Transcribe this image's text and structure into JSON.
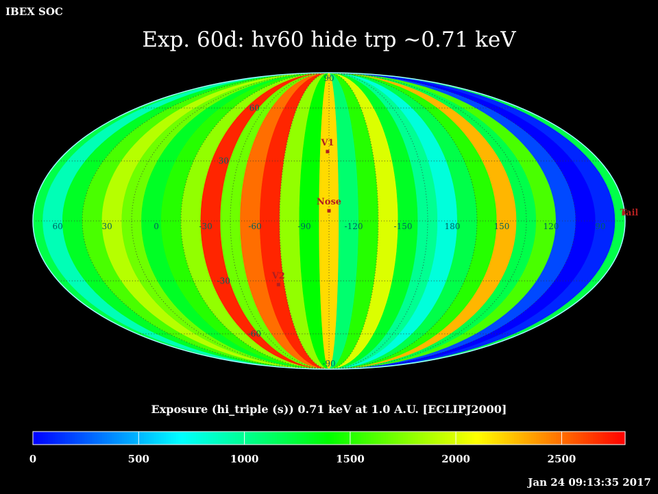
{
  "header": {
    "corner_label": "IBEX SOC",
    "title": "Exp.   60d: hv60 hide trp ~0.71 keV",
    "timestamp": "Jan 24 09:13:35 2017"
  },
  "chart_data": {
    "type": "heatmap",
    "projection": "mollweide",
    "title": "Exp.   60d: hv60 hide trp ~0.71 keV",
    "colorbar": {
      "label": "Exposure (hi_triple (s))  0.71 keV at 1.0 A.U. [ECLIPJ2000]",
      "ticks": [
        0,
        500,
        1000,
        1500,
        2000,
        2500
      ],
      "tick_labels": [
        "0",
        "500",
        "1000",
        "1500",
        "2000",
        "2500"
      ],
      "range": [
        0,
        2800
      ],
      "colormap": [
        "#0000ff",
        "#0080ff",
        "#00ffff",
        "#00ff80",
        "#00ff00",
        "#80ff00",
        "#ffff00",
        "#ff8000",
        "#ff0000"
      ]
    },
    "longitude_labels": [
      "60",
      "30",
      "0",
      "-30",
      "-60",
      "-90",
      "-120",
      "-150",
      "180",
      "150",
      "120",
      "90"
    ],
    "latitude_labels": [
      "90",
      "60",
      "30",
      "-30",
      "-60",
      "-90"
    ],
    "markers": [
      {
        "name": "V1",
        "lon": 256,
        "lat": 35
      },
      {
        "name": "Nose",
        "lon": 255,
        "lat": 5
      },
      {
        "name": "V2",
        "lon": 289,
        "lat": -32
      },
      {
        "name": "Tail",
        "lon": 75,
        "lat": -5
      }
    ],
    "exposure_strips": [
      {
        "center": -180,
        "value": 1200
      },
      {
        "center": -168,
        "value": 900
      },
      {
        "center": -156,
        "value": 1300
      },
      {
        "center": -144,
        "value": 1600
      },
      {
        "center": -132,
        "value": 1900
      },
      {
        "center": -120,
        "value": 1700
      },
      {
        "center": -108,
        "value": 1300
      },
      {
        "center": -96,
        "value": 1500
      },
      {
        "center": -84,
        "value": 1800
      },
      {
        "center": -72,
        "value": 2700
      },
      {
        "center": -60,
        "value": 1700
      },
      {
        "center": -48,
        "value": 2500
      },
      {
        "center": -36,
        "value": 2700
      },
      {
        "center": -24,
        "value": 1800
      },
      {
        "center": -12,
        "value": 1400
      },
      {
        "center": 0,
        "value": 2200
      },
      {
        "center": 12,
        "value": 1100
      },
      {
        "center": 24,
        "value": 1500
      },
      {
        "center": 36,
        "value": 2000
      },
      {
        "center": 48,
        "value": 1300
      },
      {
        "center": 60,
        "value": 1000
      },
      {
        "center": 72,
        "value": 800
      },
      {
        "center": 84,
        "value": 1200
      },
      {
        "center": 96,
        "value": 1500
      },
      {
        "center": 108,
        "value": 2300
      },
      {
        "center": 120,
        "value": 1200
      },
      {
        "center": 132,
        "value": 1600
      },
      {
        "center": 144,
        "value": 200
      },
      {
        "center": 156,
        "value": 0
      },
      {
        "center": 168,
        "value": 100
      },
      {
        "center": 180,
        "value": 1200
      }
    ]
  }
}
